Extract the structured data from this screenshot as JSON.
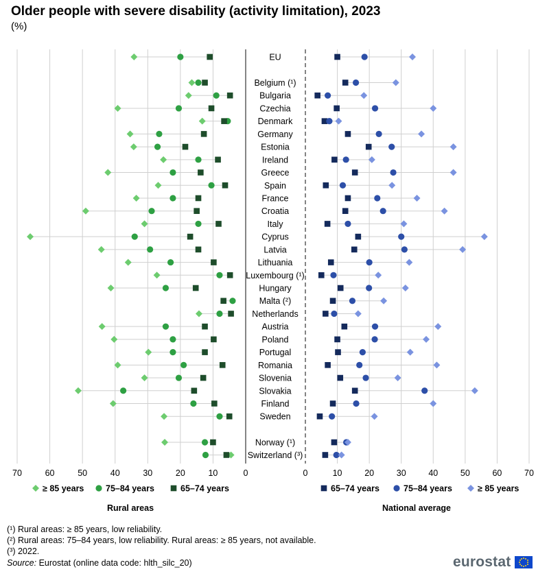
{
  "header": {
    "title": "Older people with severe disability (activity limitation), 2023",
    "subtitle": "(%)"
  },
  "colors": {
    "ge85": "#6dcc6f",
    "a7584": "#2ea043",
    "a6574": "#1e4d2b",
    "nat_6574": "#142a5c",
    "nat_7584": "#2d4fa8",
    "nat_ge85": "#7a93e0",
    "gridline": "#cfcfcf",
    "axis": "#333333"
  },
  "chart_data": [
    {
      "type": "scatter",
      "panel": "Rural areas",
      "x_reversed": true,
      "xlim": [
        0,
        70
      ],
      "ticks": [
        70,
        60,
        50,
        40,
        30,
        20,
        10,
        0
      ],
      "legend": [
        "≥ 85 years",
        "75–84 years",
        "65–74 years"
      ],
      "categories": [
        "EU",
        "Belgium (¹)",
        "Bulgaria",
        "Czechia",
        "Denmark",
        "Germany",
        "Estonia",
        "Ireland",
        "Greece",
        "Spain",
        "France",
        "Croatia",
        "Italy",
        "Cyprus",
        "Latvia",
        "Lithuania",
        "Luxembourg (¹)",
        "Hungary",
        "Malta (²)",
        "Netherlands",
        "Austria",
        "Poland",
        "Portugal",
        "Romania",
        "Slovenia",
        "Slovakia",
        "Finland",
        "Sweden",
        "Norway (¹)",
        "Switzerland (³)"
      ],
      "series": [
        {
          "name": "≥ 85 years",
          "values": [
            34.2,
            16.5,
            17.5,
            39.2,
            13.3,
            35.4,
            34.3,
            25.2,
            42.2,
            26.8,
            33.5,
            49.0,
            31.0,
            66.0,
            44.2,
            36.0,
            27.2,
            41.3,
            null,
            14.3,
            44.0,
            40.3,
            29.8,
            39.2,
            31.0,
            51.3,
            40.6,
            25.0,
            24.8,
            4.5
          ]
        },
        {
          "name": "75–84 years",
          "values": [
            20.0,
            14.5,
            9.0,
            20.5,
            5.5,
            26.5,
            27.0,
            14.5,
            22.3,
            10.5,
            22.3,
            28.8,
            14.5,
            34.0,
            29.3,
            23.0,
            8.0,
            24.5,
            4.0,
            8.0,
            24.5,
            22.3,
            22.3,
            19.0,
            20.5,
            37.5,
            16.0,
            8.0,
            12.5,
            12.3
          ]
        },
        {
          "name": "65–74 years",
          "values": [
            11.0,
            12.5,
            4.8,
            10.5,
            6.6,
            12.8,
            18.5,
            8.5,
            13.8,
            6.3,
            14.5,
            15.0,
            8.3,
            17.0,
            14.5,
            9.8,
            4.8,
            15.3,
            6.8,
            4.5,
            12.5,
            9.8,
            12.5,
            7.1,
            13.0,
            15.8,
            9.6,
            5.0,
            10.0,
            5.9
          ]
        }
      ]
    },
    {
      "type": "scatter",
      "panel": "National average",
      "xlim": [
        0,
        70
      ],
      "ticks": [
        0,
        10,
        20,
        30,
        40,
        50,
        60,
        70
      ],
      "legend": [
        "65–74 years",
        "75–84 years",
        "≥ 85 years"
      ],
      "categories": [
        "EU",
        "Belgium (¹)",
        "Bulgaria",
        "Czechia",
        "Denmark",
        "Germany",
        "Estonia",
        "Ireland",
        "Greece",
        "Spain",
        "France",
        "Croatia",
        "Italy",
        "Cyprus",
        "Latvia",
        "Lithuania",
        "Luxembourg (¹)",
        "Hungary",
        "Malta (²)",
        "Netherlands",
        "Austria",
        "Poland",
        "Portugal",
        "Romania",
        "Slovenia",
        "Slovakia",
        "Finland",
        "Sweden",
        "Norway (¹)",
        "Switzerland (³)"
      ],
      "series": [
        {
          "name": "65–74 years",
          "values": [
            10.0,
            12.5,
            3.8,
            9.8,
            6.0,
            13.3,
            19.8,
            9.1,
            15.5,
            6.4,
            13.3,
            12.5,
            6.9,
            16.5,
            15.3,
            8.0,
            5.0,
            11.0,
            8.6,
            6.3,
            12.2,
            10.0,
            10.2,
            7.0,
            10.9,
            15.5,
            8.6,
            4.5,
            9.0,
            6.2
          ]
        },
        {
          "name": "75–84 years",
          "values": [
            18.5,
            15.8,
            7.0,
            21.8,
            7.5,
            23.0,
            27.0,
            12.7,
            27.5,
            11.7,
            22.5,
            24.3,
            13.3,
            30.0,
            31.0,
            20.0,
            8.8,
            19.9,
            14.7,
            9.0,
            21.8,
            21.7,
            17.9,
            16.9,
            18.9,
            37.3,
            15.9,
            8.3,
            12.8,
            9.7
          ]
        },
        {
          "name": "≥ 85 years",
          "values": [
            33.5,
            28.3,
            18.3,
            40.0,
            10.4,
            36.3,
            46.3,
            20.8,
            46.3,
            27.1,
            34.9,
            43.5,
            30.8,
            56.0,
            49.2,
            32.5,
            22.8,
            31.3,
            24.5,
            16.5,
            41.5,
            37.8,
            32.8,
            41.1,
            28.9,
            53.0,
            40.0,
            21.6,
            13.3,
            11.3
          ]
        }
      ]
    }
  ],
  "panels": {
    "left_label": "Rural areas",
    "right_label": "National average"
  },
  "footnotes": {
    "f1": "(¹) Rural areas: ≥ 85 years, low reliability.",
    "f2": "(²) Rural areas: 75–84 years, low reliability. Rural areas: ≥ 85 years, not available.",
    "f3": "(³) 2022.",
    "source_label": "Source:",
    "source_text": "Eurostat (online data code: hlth_silc_20)"
  },
  "brand": {
    "logo_text": "eurostat",
    "logo_icon": "eu-flag-icon"
  }
}
